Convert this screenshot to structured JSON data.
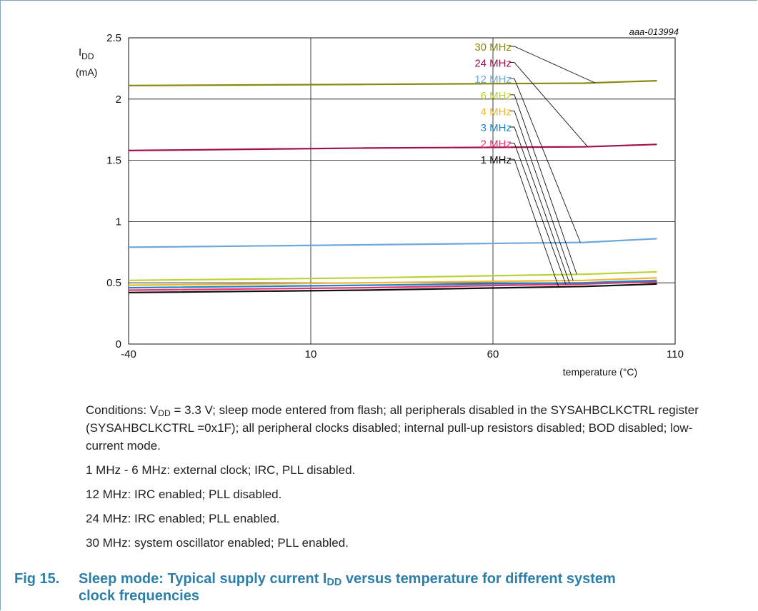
{
  "figure": {
    "id_label": "aaa-013994",
    "number": "Fig 15.",
    "title_part1": "Sleep mode: Typical supply current I",
    "title_sub": "DD",
    "title_part2": " versus temperature for different system",
    "title_line2": "clock frequencies"
  },
  "notes": {
    "cond_prefix": "Conditions: V",
    "cond_sub": "DD",
    "cond_rest": " = 3.3 V; sleep mode entered from flash; all peripherals disabled in the SYSAHBCLKCTRL register (SYSAHBCLKCTRL =0x1F); all peripheral clocks disabled; internal pull-up resistors disabled; BOD disabled; low-current mode.",
    "line_1_6": "1 MHz - 6 MHz: external clock; IRC, PLL disabled.",
    "line_12": "12 MHz: IRC enabled; PLL disabled.",
    "line_24": "24 MHz: IRC enabled; PLL enabled.",
    "line_30": "30 MHz: system oscillator enabled; PLL enabled."
  },
  "chart_data": {
    "type": "line",
    "ylabel_main": "I",
    "ylabel_sub": "DD",
    "ylabel_unit": "(mA)",
    "xlabel": "temperature (°C)",
    "xlim": [
      -40,
      110
    ],
    "ylim": [
      0,
      2.5
    ],
    "xticks": [
      "-40",
      "10",
      "60",
      "110"
    ],
    "yticks": [
      "0",
      "0.5",
      "1",
      "1.5",
      "2",
      "2.5"
    ],
    "grid": true,
    "legend": "top-right (callout labels)",
    "series": [
      {
        "name": "30 MHz",
        "color": "#8a8a12",
        "x": [
          -40,
          25,
          85,
          105
        ],
        "y": [
          2.11,
          2.12,
          2.13,
          2.15
        ]
      },
      {
        "name": "24 MHz",
        "color": "#a0124e",
        "x": [
          -40,
          25,
          85,
          105
        ],
        "y": [
          1.58,
          1.6,
          1.61,
          1.63
        ]
      },
      {
        "name": "12 MHz",
        "color": "#6fa8dc",
        "x": [
          -40,
          25,
          85,
          105
        ],
        "y": [
          0.79,
          0.81,
          0.83,
          0.86
        ]
      },
      {
        "name": "6 MHz",
        "color": "#b8d435",
        "x": [
          -40,
          25,
          85,
          105
        ],
        "y": [
          0.52,
          0.54,
          0.57,
          0.59
        ]
      },
      {
        "name": "4 MHz",
        "color": "#f2b531",
        "x": [
          -40,
          25,
          85,
          105
        ],
        "y": [
          0.48,
          0.5,
          0.52,
          0.54
        ]
      },
      {
        "name": "3 MHz",
        "color": "#1f86c8",
        "x": [
          -40,
          25,
          85,
          105
        ],
        "y": [
          0.46,
          0.48,
          0.5,
          0.52
        ]
      },
      {
        "name": "2 MHz",
        "color": "#e8336e",
        "x": [
          -40,
          25,
          85,
          105
        ],
        "y": [
          0.44,
          0.46,
          0.49,
          0.51
        ]
      },
      {
        "name": "1 MHz",
        "color": "#111111",
        "x": [
          -40,
          25,
          85,
          105
        ],
        "y": [
          0.42,
          0.44,
          0.47,
          0.49
        ]
      }
    ],
    "label_anchor_x": [
      88,
      86,
      84,
      83,
      82,
      81,
      80,
      78
    ]
  }
}
